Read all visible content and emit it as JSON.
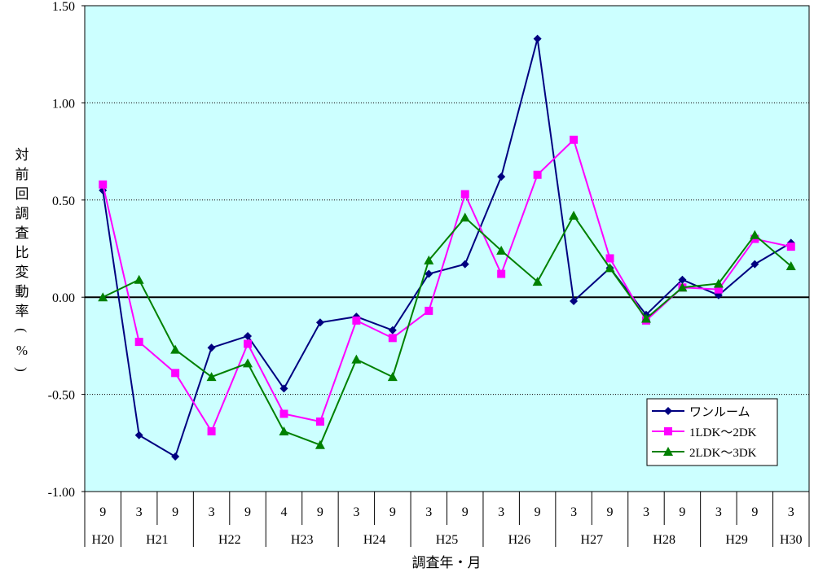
{
  "chart_data": {
    "type": "line",
    "title": "",
    "ylabel": "対前回調査比変動率(%)",
    "xlabel": "調査年・月",
    "ylim": [
      -1.0,
      1.5
    ],
    "yticks": [
      "1.50",
      "1.00",
      "0.50",
      "0.00",
      "-0.50",
      "-1.00"
    ],
    "yticks_values": [
      1.5,
      1.0,
      0.5,
      0.0,
      -0.5,
      -1.0
    ],
    "months": [
      "9",
      "3",
      "9",
      "3",
      "9",
      "4",
      "9",
      "3",
      "9",
      "3",
      "9",
      "3",
      "9",
      "3",
      "9",
      "3",
      "9",
      "3",
      "9",
      "3"
    ],
    "years": [
      {
        "label": "H20",
        "span": 1
      },
      {
        "label": "H21",
        "span": 2
      },
      {
        "label": "H22",
        "span": 2
      },
      {
        "label": "H23",
        "span": 2
      },
      {
        "label": "H24",
        "span": 2
      },
      {
        "label": "H25",
        "span": 2
      },
      {
        "label": "H26",
        "span": 2
      },
      {
        "label": "H27",
        "span": 2
      },
      {
        "label": "H28",
        "span": 2
      },
      {
        "label": "H29",
        "span": 2
      },
      {
        "label": "H30",
        "span": 1
      }
    ],
    "legend_position": "lower-right",
    "grid": true,
    "series": [
      {
        "name": "ワンルーム",
        "color": "#000080",
        "marker": "diamond",
        "values": [
          0.55,
          -0.71,
          -0.82,
          -0.26,
          -0.2,
          -0.47,
          -0.13,
          -0.1,
          -0.17,
          0.12,
          0.17,
          0.62,
          1.33,
          -0.02,
          0.15,
          -0.09,
          0.09,
          0.01,
          0.17,
          0.28
        ]
      },
      {
        "name": "1LDK～2DK",
        "color": "#ff00ff",
        "marker": "square",
        "values": [
          0.58,
          -0.23,
          -0.39,
          -0.69,
          -0.24,
          -0.6,
          -0.64,
          -0.12,
          -0.21,
          -0.07,
          0.53,
          0.12,
          0.63,
          0.81,
          0.2,
          -0.12,
          0.05,
          0.04,
          0.3,
          0.26
        ]
      },
      {
        "name": "2LDK～3DK",
        "color": "#008000",
        "marker": "triangle",
        "values": [
          0.0,
          0.09,
          -0.27,
          -0.41,
          -0.34,
          -0.69,
          -0.76,
          -0.32,
          -0.41,
          0.19,
          0.41,
          0.24,
          0.08,
          0.42,
          0.15,
          -0.11,
          0.05,
          0.07,
          0.32,
          0.16
        ]
      }
    ]
  }
}
